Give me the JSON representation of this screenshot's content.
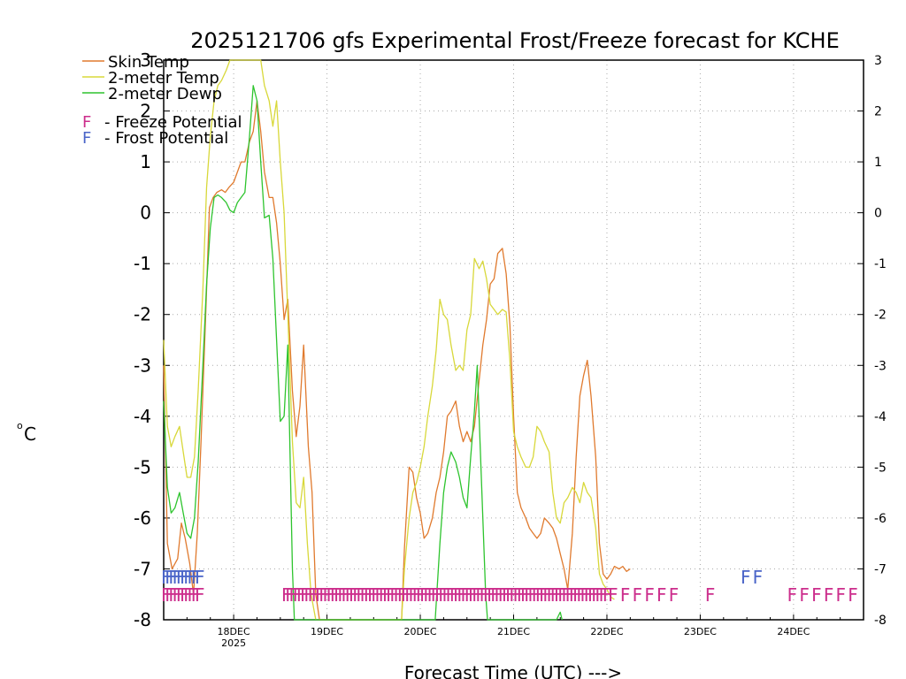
{
  "chart_data": {
    "type": "line",
    "title": "2025121706 gfs Experimental Frost/Freeze forecast for KCHE",
    "xlabel": "Forecast Time (UTC) --->",
    "ylabel": "°C",
    "ylabel_deg": "o",
    "ylabel_unit": "C",
    "ylim": [
      -8,
      3
    ],
    "yticks": [
      -8,
      -7,
      -6,
      -5,
      -4,
      -3,
      -2,
      -1,
      0,
      1,
      2,
      3
    ],
    "ytick_labels": [
      "-8",
      "-7",
      "-6",
      "-5",
      "-4",
      "-3",
      "-2",
      "-1",
      "0",
      "1",
      "2",
      "3"
    ],
    "xlim_days": [
      -0.75,
      6.75
    ],
    "xticks": [
      {
        "day": 0,
        "label": "18DEC",
        "sublabel": "2025"
      },
      {
        "day": 1,
        "label": "19DEC",
        "sublabel": ""
      },
      {
        "day": 2,
        "label": "20DEC",
        "sublabel": ""
      },
      {
        "day": 3,
        "label": "21DEC",
        "sublabel": ""
      },
      {
        "day": 4,
        "label": "22DEC",
        "sublabel": ""
      },
      {
        "day": 5,
        "label": "23DEC",
        "sublabel": ""
      },
      {
        "day": 6,
        "label": "24DEC",
        "sublabel": ""
      }
    ],
    "grid": true,
    "series": [
      {
        "name": "Skin Temp",
        "color": "#e07a2e",
        "points": [
          [
            -0.75,
            -3.0
          ],
          [
            -0.71,
            -6.5
          ],
          [
            -0.66,
            -7.0
          ],
          [
            -0.6,
            -6.8
          ],
          [
            -0.56,
            -6.1
          ],
          [
            -0.52,
            -6.4
          ],
          [
            -0.47,
            -6.9
          ],
          [
            -0.43,
            -7.5
          ],
          [
            -0.39,
            -6.3
          ],
          [
            -0.35,
            -4.5
          ],
          [
            -0.3,
            -2.0
          ],
          [
            -0.26,
            0.1
          ],
          [
            -0.22,
            0.3
          ],
          [
            -0.18,
            0.4
          ],
          [
            -0.13,
            0.45
          ],
          [
            -0.09,
            0.4
          ],
          [
            -0.05,
            0.5
          ],
          [
            0.0,
            0.6
          ],
          [
            0.04,
            0.8
          ],
          [
            0.08,
            1.0
          ],
          [
            0.12,
            1.0
          ],
          [
            0.17,
            1.4
          ],
          [
            0.21,
            1.6
          ],
          [
            0.25,
            2.2
          ],
          [
            0.29,
            1.6
          ],
          [
            0.33,
            0.8
          ],
          [
            0.38,
            0.3
          ],
          [
            0.42,
            0.3
          ],
          [
            0.46,
            -0.2
          ],
          [
            0.5,
            -1.0
          ],
          [
            0.54,
            -2.1
          ],
          [
            0.58,
            -1.7
          ],
          [
            0.63,
            -3.5
          ],
          [
            0.67,
            -4.4
          ],
          [
            0.71,
            -3.8
          ],
          [
            0.75,
            -2.6
          ],
          [
            0.8,
            -4.6
          ],
          [
            0.84,
            -5.5
          ],
          [
            0.88,
            -7.5
          ],
          [
            0.92,
            -8.0
          ],
          [
            1.8,
            -8.0
          ],
          [
            1.83,
            -6.6
          ],
          [
            1.88,
            -5.0
          ],
          [
            1.92,
            -5.1
          ],
          [
            1.96,
            -5.6
          ],
          [
            2.0,
            -5.9
          ],
          [
            2.04,
            -6.4
          ],
          [
            2.08,
            -6.3
          ],
          [
            2.13,
            -6.0
          ],
          [
            2.17,
            -5.5
          ],
          [
            2.21,
            -5.2
          ],
          [
            2.25,
            -4.7
          ],
          [
            2.29,
            -4.0
          ],
          [
            2.33,
            -3.9
          ],
          [
            2.38,
            -3.7
          ],
          [
            2.42,
            -4.2
          ],
          [
            2.46,
            -4.5
          ],
          [
            2.5,
            -4.3
          ],
          [
            2.54,
            -4.5
          ],
          [
            2.58,
            -4.2
          ],
          [
            2.63,
            -3.3
          ],
          [
            2.67,
            -2.6
          ],
          [
            2.71,
            -2.1
          ],
          [
            2.75,
            -1.4
          ],
          [
            2.79,
            -1.3
          ],
          [
            2.83,
            -0.8
          ],
          [
            2.88,
            -0.7
          ],
          [
            2.92,
            -1.2
          ],
          [
            2.96,
            -2.2
          ],
          [
            3.0,
            -4.0
          ],
          [
            3.04,
            -5.5
          ],
          [
            3.08,
            -5.8
          ],
          [
            3.13,
            -6.0
          ],
          [
            3.17,
            -6.2
          ],
          [
            3.21,
            -6.3
          ],
          [
            3.25,
            -6.4
          ],
          [
            3.29,
            -6.3
          ],
          [
            3.33,
            -6.0
          ],
          [
            3.38,
            -6.1
          ],
          [
            3.42,
            -6.2
          ],
          [
            3.46,
            -6.4
          ],
          [
            3.5,
            -6.7
          ],
          [
            3.54,
            -7.0
          ],
          [
            3.58,
            -7.4
          ],
          [
            3.63,
            -6.3
          ],
          [
            3.67,
            -4.8
          ],
          [
            3.71,
            -3.6
          ],
          [
            3.75,
            -3.2
          ],
          [
            3.79,
            -2.9
          ],
          [
            3.83,
            -3.6
          ],
          [
            3.88,
            -4.8
          ],
          [
            3.92,
            -6.5
          ],
          [
            3.96,
            -7.1
          ],
          [
            4.0,
            -7.2
          ],
          [
            4.04,
            -7.1
          ],
          [
            4.08,
            -6.95
          ],
          [
            4.13,
            -7.0
          ],
          [
            4.17,
            -6.95
          ],
          [
            4.21,
            -7.05
          ],
          [
            4.25,
            -7.0
          ]
        ]
      },
      {
        "name": "2-meter Temp",
        "color": "#d8d83a",
        "points": [
          [
            -0.75,
            -2.5
          ],
          [
            -0.71,
            -4.2
          ],
          [
            -0.67,
            -4.6
          ],
          [
            -0.63,
            -4.4
          ],
          [
            -0.58,
            -4.2
          ],
          [
            -0.54,
            -4.7
          ],
          [
            -0.5,
            -5.2
          ],
          [
            -0.46,
            -5.2
          ],
          [
            -0.42,
            -4.8
          ],
          [
            -0.38,
            -3.5
          ],
          [
            -0.33,
            -1.5
          ],
          [
            -0.29,
            0.5
          ],
          [
            -0.25,
            1.5
          ],
          [
            -0.21,
            2.2
          ],
          [
            -0.17,
            2.5
          ],
          [
            -0.13,
            2.6
          ],
          [
            -0.08,
            2.8
          ],
          [
            -0.04,
            3.0
          ],
          [
            0.29,
            3.0
          ],
          [
            0.33,
            2.5
          ],
          [
            0.38,
            2.2
          ],
          [
            0.42,
            1.7
          ],
          [
            0.46,
            2.2
          ],
          [
            0.5,
            1.0
          ],
          [
            0.54,
            0.0
          ],
          [
            0.58,
            -2.0
          ],
          [
            0.63,
            -4.5
          ],
          [
            0.67,
            -5.7
          ],
          [
            0.71,
            -5.8
          ],
          [
            0.75,
            -5.2
          ],
          [
            0.79,
            -6.5
          ],
          [
            0.83,
            -7.5
          ],
          [
            0.88,
            -8.0
          ],
          [
            1.8,
            -8.0
          ],
          [
            1.83,
            -7.0
          ],
          [
            1.88,
            -6.0
          ],
          [
            1.92,
            -5.5
          ],
          [
            1.96,
            -5.3
          ],
          [
            2.0,
            -5.0
          ],
          [
            2.04,
            -4.6
          ],
          [
            2.08,
            -4.0
          ],
          [
            2.13,
            -3.4
          ],
          [
            2.17,
            -2.7
          ],
          [
            2.21,
            -1.7
          ],
          [
            2.25,
            -2.0
          ],
          [
            2.29,
            -2.1
          ],
          [
            2.33,
            -2.6
          ],
          [
            2.38,
            -3.1
          ],
          [
            2.42,
            -3.0
          ],
          [
            2.46,
            -3.1
          ],
          [
            2.5,
            -2.3
          ],
          [
            2.54,
            -2.0
          ],
          [
            2.58,
            -0.9
          ],
          [
            2.63,
            -1.1
          ],
          [
            2.67,
            -0.95
          ],
          [
            2.71,
            -1.3
          ],
          [
            2.75,
            -1.8
          ],
          [
            2.79,
            -1.9
          ],
          [
            2.83,
            -2.0
          ],
          [
            2.88,
            -1.9
          ],
          [
            2.92,
            -1.95
          ],
          [
            2.96,
            -2.9
          ],
          [
            3.0,
            -4.3
          ],
          [
            3.04,
            -4.6
          ],
          [
            3.08,
            -4.8
          ],
          [
            3.13,
            -5.0
          ],
          [
            3.17,
            -5.0
          ],
          [
            3.21,
            -4.8
          ],
          [
            3.25,
            -4.2
          ],
          [
            3.29,
            -4.3
          ],
          [
            3.33,
            -4.5
          ],
          [
            3.38,
            -4.7
          ],
          [
            3.42,
            -5.5
          ],
          [
            3.46,
            -6.0
          ],
          [
            3.5,
            -6.1
          ],
          [
            3.54,
            -5.7
          ],
          [
            3.58,
            -5.6
          ],
          [
            3.63,
            -5.4
          ],
          [
            3.67,
            -5.5
          ],
          [
            3.71,
            -5.7
          ],
          [
            3.75,
            -5.3
          ],
          [
            3.79,
            -5.5
          ],
          [
            3.83,
            -5.6
          ],
          [
            3.88,
            -6.2
          ],
          [
            3.92,
            -7.1
          ],
          [
            3.96,
            -7.3
          ],
          [
            4.0,
            -7.4
          ],
          [
            4.04,
            -7.55
          ],
          [
            4.08,
            -7.6
          ]
        ]
      },
      {
        "name": "2-meter Dewp",
        "color": "#2ec42e",
        "points": [
          [
            -0.75,
            -3.7
          ],
          [
            -0.71,
            -5.4
          ],
          [
            -0.67,
            -5.9
          ],
          [
            -0.63,
            -5.8
          ],
          [
            -0.58,
            -5.5
          ],
          [
            -0.54,
            -5.9
          ],
          [
            -0.5,
            -6.3
          ],
          [
            -0.46,
            -6.4
          ],
          [
            -0.42,
            -6.0
          ],
          [
            -0.38,
            -4.9
          ],
          [
            -0.33,
            -3.0
          ],
          [
            -0.29,
            -1.4
          ],
          [
            -0.25,
            -0.3
          ],
          [
            -0.21,
            0.3
          ],
          [
            -0.17,
            0.35
          ],
          [
            -0.13,
            0.3
          ],
          [
            -0.08,
            0.2
          ],
          [
            -0.04,
            0.05
          ],
          [
            0.0,
            0.0
          ],
          [
            0.04,
            0.2
          ],
          [
            0.08,
            0.3
          ],
          [
            0.12,
            0.4
          ],
          [
            0.17,
            1.5
          ],
          [
            0.21,
            2.5
          ],
          [
            0.25,
            2.2
          ],
          [
            0.29,
            1.0
          ],
          [
            0.33,
            -0.1
          ],
          [
            0.38,
            -0.05
          ],
          [
            0.42,
            -0.9
          ],
          [
            0.46,
            -2.5
          ],
          [
            0.5,
            -4.1
          ],
          [
            0.54,
            -4.0
          ],
          [
            0.58,
            -2.6
          ],
          [
            0.63,
            -7.0
          ],
          [
            0.65,
            -8.0
          ],
          [
            2.16,
            -8.0
          ],
          [
            2.21,
            -6.5
          ],
          [
            2.25,
            -5.5
          ],
          [
            2.29,
            -5.0
          ],
          [
            2.33,
            -4.7
          ],
          [
            2.38,
            -4.9
          ],
          [
            2.42,
            -5.2
          ],
          [
            2.46,
            -5.6
          ],
          [
            2.5,
            -5.8
          ],
          [
            2.54,
            -4.8
          ],
          [
            2.58,
            -3.9
          ],
          [
            2.61,
            -3.0
          ],
          [
            2.65,
            -5.0
          ],
          [
            2.7,
            -7.5
          ],
          [
            2.72,
            -8.0
          ],
          [
            3.46,
            -8.0
          ],
          [
            3.5,
            -7.85
          ],
          [
            3.52,
            -8.0
          ]
        ]
      }
    ],
    "potential_legend": [
      {
        "marker": "F",
        "text": "- Freeze Potential",
        "color": "#cc2e8c"
      },
      {
        "marker": "F",
        "text": "- Frost Potential",
        "color": "#4a64c8"
      }
    ],
    "freeze_potential": {
      "symbol": "F",
      "color": "#cc2e8c",
      "value": -7.5,
      "segments": [
        [
          -0.75,
          -0.37,
          0.04
        ],
        [
          0.54,
          4.0,
          0.04
        ],
        [
          4.04,
          4.81,
          0.13
        ],
        [
          5.08,
          5.08,
          0.13
        ],
        [
          5.96,
          6.67,
          0.13
        ]
      ]
    },
    "frost_potential": {
      "symbol": "F",
      "color": "#4a64c8",
      "value": -7.15,
      "segments": [
        [
          -0.75,
          -0.37,
          0.04
        ],
        [
          5.46,
          5.6,
          0.13
        ]
      ]
    }
  }
}
